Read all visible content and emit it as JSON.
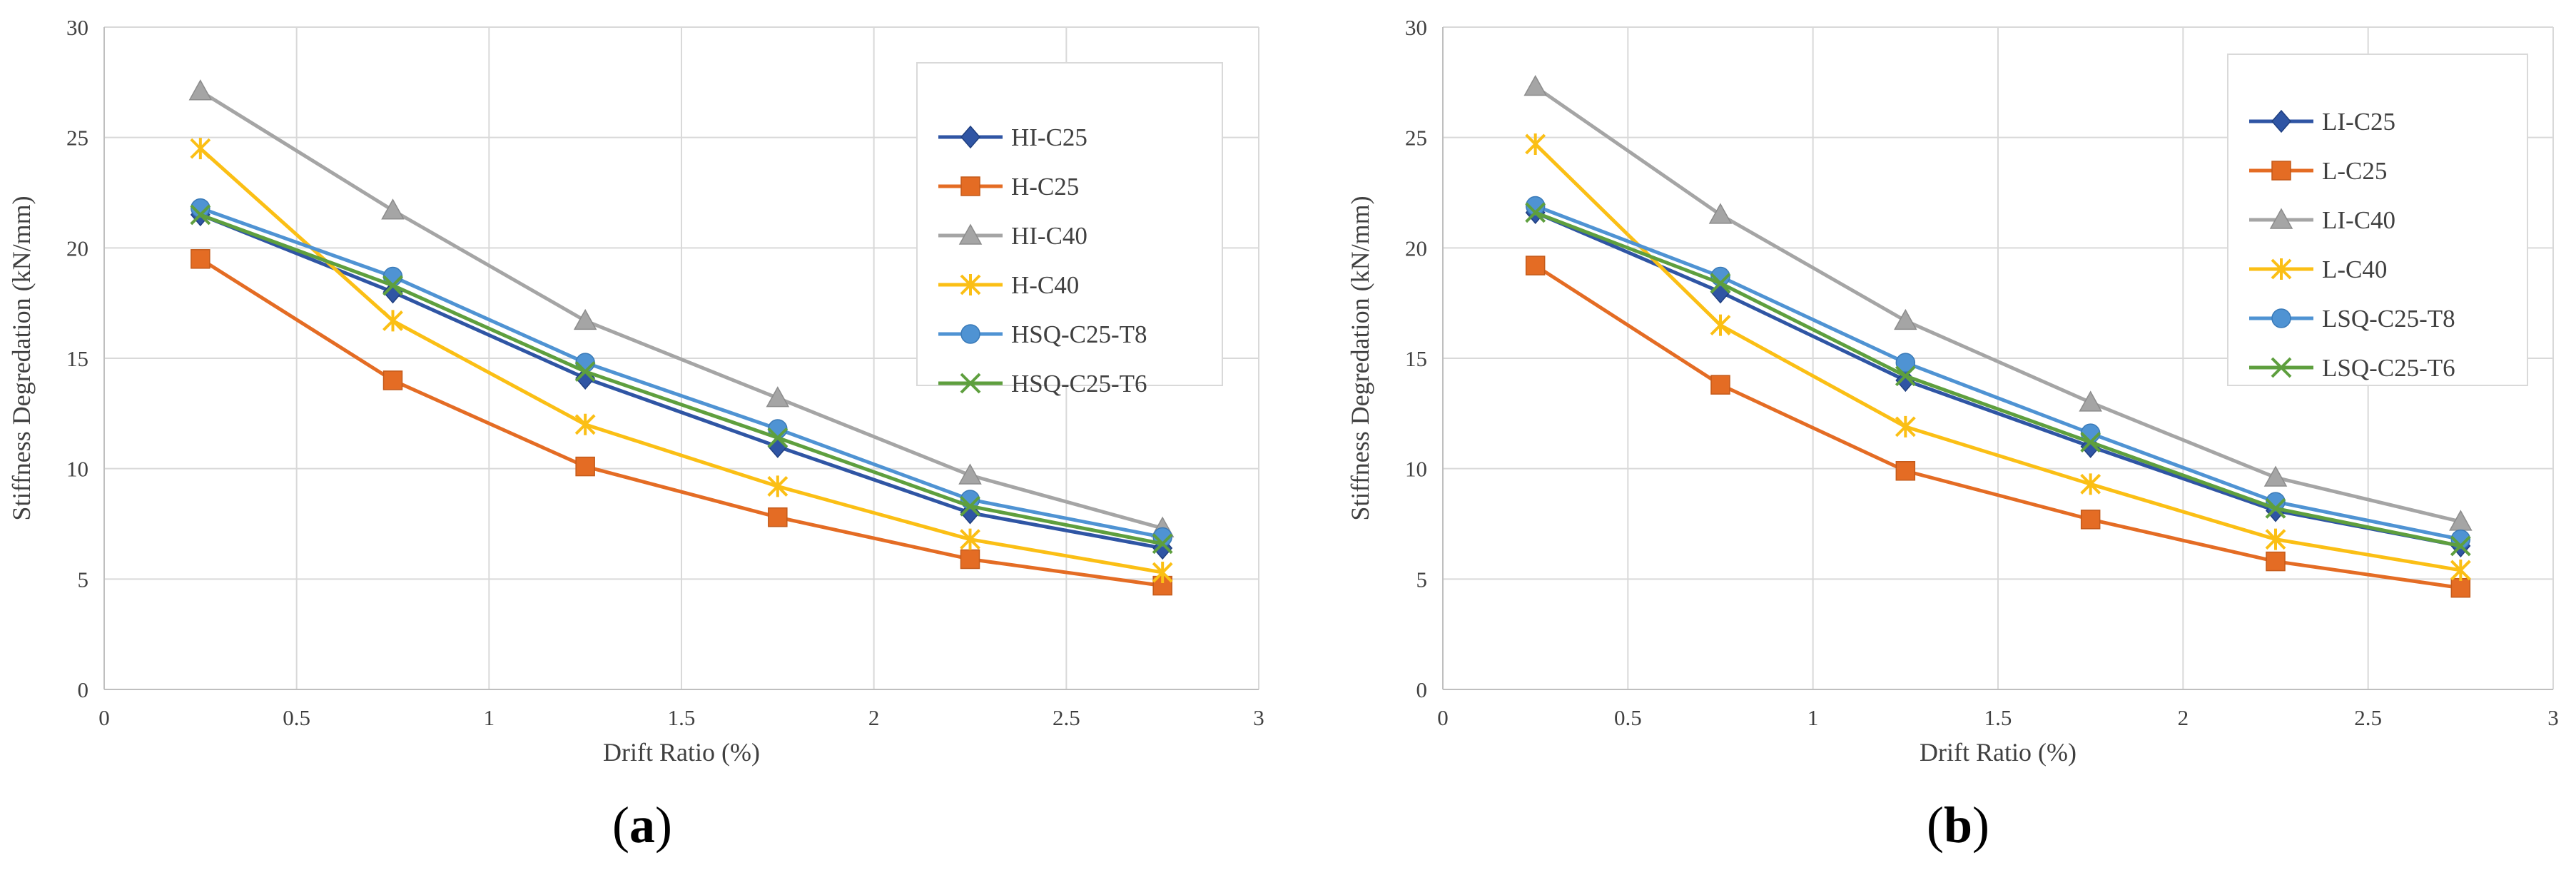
{
  "chart_data": [
    {
      "type": "line",
      "panel_label_open": "(",
      "panel_label_letter": "a",
      "panel_label_close": ")",
      "xlabel": "Drift Ratio (%)",
      "ylabel": "Stiffness Degredation (kN/mm)",
      "xlim": [
        0,
        3
      ],
      "ylim": [
        0,
        30
      ],
      "xticks": [
        0,
        0.5,
        1,
        1.5,
        2,
        2.5,
        3
      ],
      "xtick_labels": [
        "0",
        "0.5",
        "1",
        "1.5",
        "2",
        "2.5",
        "3"
      ],
      "yticks": [
        0,
        5,
        10,
        15,
        20,
        25,
        30
      ],
      "ytick_labels": [
        "0",
        "5",
        "10",
        "15",
        "20",
        "25",
        "30"
      ],
      "grid": true,
      "legend_position": "top-right",
      "x": [
        0.25,
        0.75,
        1.25,
        1.75,
        2.25,
        2.75
      ],
      "series": [
        {
          "name": "HI-C25",
          "color": "#2F55A4",
          "marker": "diamond",
          "values": [
            21.5,
            18.0,
            14.1,
            11.0,
            8.0,
            6.4
          ]
        },
        {
          "name": "H-C25",
          "color": "#E46C24",
          "marker": "square",
          "values": [
            19.5,
            14.0,
            10.1,
            7.8,
            5.9,
            4.7
          ]
        },
        {
          "name": "HI-C40",
          "color": "#A5A5A5",
          "marker": "triangle",
          "values": [
            27.1,
            21.7,
            16.7,
            13.2,
            9.7,
            7.3
          ]
        },
        {
          "name": "H-C40",
          "color": "#FBBF15",
          "marker": "star",
          "values": [
            24.5,
            16.7,
            12.0,
            9.2,
            6.8,
            5.3
          ]
        },
        {
          "name": "HSQ-C25-T8",
          "color": "#4F93D3",
          "marker": "circle",
          "values": [
            21.8,
            18.7,
            14.8,
            11.8,
            8.6,
            6.9
          ]
        },
        {
          "name": "HSQ-C25-T6",
          "color": "#5E9F3E",
          "marker": "x",
          "values": [
            21.5,
            18.3,
            14.4,
            11.4,
            8.3,
            6.6
          ]
        }
      ]
    },
    {
      "type": "line",
      "panel_label_open": "(",
      "panel_label_letter": "b",
      "panel_label_close": ")",
      "xlabel": "Drift Ratio (%)",
      "ylabel": "Stiffness Degredation (kN/mm)",
      "xlim": [
        0,
        3
      ],
      "ylim": [
        0,
        30
      ],
      "xticks": [
        0,
        0.5,
        1,
        1.5,
        2,
        2.5,
        3
      ],
      "xtick_labels": [
        "0",
        "0.5",
        "1",
        "1.5",
        "2",
        "2.5",
        "3"
      ],
      "yticks": [
        0,
        5,
        10,
        15,
        20,
        25,
        30
      ],
      "ytick_labels": [
        "0",
        "5",
        "10",
        "15",
        "20",
        "25",
        "30"
      ],
      "grid": true,
      "legend_position": "top-right",
      "x": [
        0.25,
        0.75,
        1.25,
        1.75,
        2.25,
        2.75
      ],
      "series": [
        {
          "name": "LI-C25",
          "color": "#2F55A4",
          "marker": "diamond",
          "values": [
            21.6,
            18.0,
            14.0,
            11.0,
            8.1,
            6.5
          ]
        },
        {
          "name": "L-C25",
          "color": "#E46C24",
          "marker": "square",
          "values": [
            19.2,
            13.8,
            9.9,
            7.7,
            5.8,
            4.6
          ]
        },
        {
          "name": "LI-C40",
          "color": "#A5A5A5",
          "marker": "triangle",
          "values": [
            27.3,
            21.5,
            16.7,
            13.0,
            9.6,
            7.6
          ]
        },
        {
          "name": "L-C40",
          "color": "#FBBF15",
          "marker": "star",
          "values": [
            24.7,
            16.5,
            11.9,
            9.3,
            6.8,
            5.4
          ]
        },
        {
          "name": "LSQ-C25-T8",
          "color": "#4F93D3",
          "marker": "circle",
          "values": [
            21.9,
            18.7,
            14.8,
            11.6,
            8.5,
            6.8
          ]
        },
        {
          "name": "LSQ-C25-T6",
          "color": "#5E9F3E",
          "marker": "x",
          "values": [
            21.6,
            18.4,
            14.2,
            11.2,
            8.2,
            6.5
          ]
        }
      ]
    }
  ]
}
